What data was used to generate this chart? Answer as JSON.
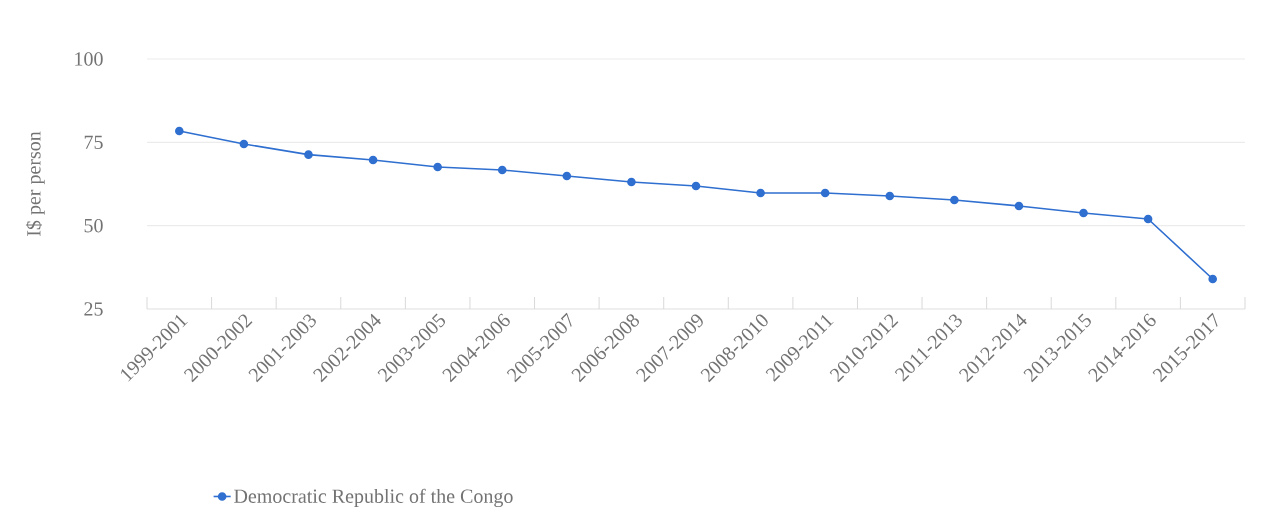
{
  "chart_data": {
    "type": "line",
    "ylabel": "I$ per person",
    "categories": [
      "1999-2001",
      "2000-2002",
      "2001-2003",
      "2002-2004",
      "2003-2005",
      "2004-2006",
      "2005-2007",
      "2006-2008",
      "2007-2009",
      "2008-2010",
      "2009-2011",
      "2010-2012",
      "2011-2013",
      "2012-2014",
      "2013-2015",
      "2014-2016",
      "2015-2017"
    ],
    "series": [
      {
        "name": "Democratic Republic of the Congo",
        "color": "#2f6fd0",
        "values": [
          78.4,
          74.5,
          71.3,
          69.7,
          67.6,
          66.7,
          64.9,
          63.1,
          61.9,
          59.8,
          59.8,
          58.9,
          57.7,
          55.9,
          53.8,
          52.0,
          34.0
        ]
      }
    ],
    "ylim": [
      25,
      100
    ],
    "yticks": [
      25,
      50,
      75,
      100
    ],
    "grid": "y",
    "legend": "bottom",
    "marker": "circle",
    "line_style": "solid"
  }
}
